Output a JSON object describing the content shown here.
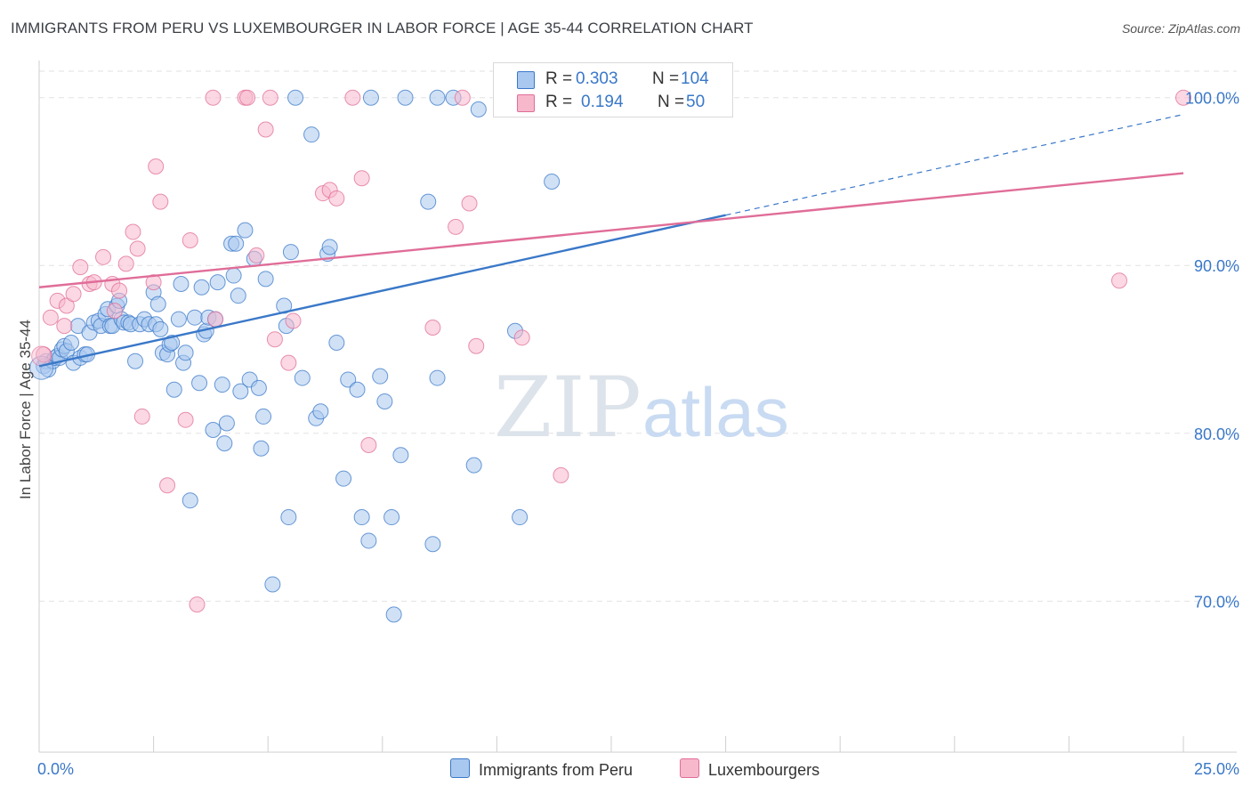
{
  "title": "IMMIGRANTS FROM PERU VS LUXEMBOURGER IN LABOR FORCE | AGE 35-44 CORRELATION CHART",
  "source": "Source: ZipAtlas.com",
  "watermark": {
    "zip": "ZIP",
    "atlas": "atlas"
  },
  "colors": {
    "blue": "#3a78c8",
    "blue_fill": "#a9c8ef",
    "pink": "#e06d98",
    "pink_fill": "#f7b8cc",
    "grid": "#e2e2e2",
    "axis_text": "#3a78c8"
  },
  "legend": {
    "r_label": "R =",
    "n_label": "N =",
    "rows": [
      {
        "r": "0.303",
        "n": "104"
      },
      {
        "r": "0.194",
        "n": "50"
      }
    ]
  },
  "bottom_legend": [
    "Immigrants from Peru",
    "Luxembourgers"
  ],
  "chart_data": {
    "type": "scatter",
    "title": "IMMIGRANTS FROM PERU VS LUXEMBOURGER IN LABOR FORCE | AGE 35-44 CORRELATION CHART",
    "xlabel": "",
    "ylabel": "In Labor Force | Age 35-44",
    "xlim": [
      0,
      25
    ],
    "ylim": [
      61,
      102
    ],
    "x_tick_labels": [
      "0.0%",
      "25.0%"
    ],
    "y_tick_labels": [
      "70.0%",
      "80.0%",
      "90.0%",
      "100.0%"
    ],
    "y_ticks": [
      70,
      80,
      90,
      100
    ],
    "grid": true,
    "series": [
      {
        "name": "Immigrants from Peru",
        "color": "#3a78c8",
        "trend": {
          "x0": 0,
          "y0": 84.0,
          "x1": 25,
          "y1": 99.0,
          "solid_until_x": 15
        },
        "points": [
          [
            0.1,
            84.0
          ],
          [
            0.15,
            84.3
          ],
          [
            0.2,
            83.8
          ],
          [
            0.3,
            84.3
          ],
          [
            0.35,
            84.5
          ],
          [
            0.4,
            84.6
          ],
          [
            0.45,
            84.5
          ],
          [
            0.5,
            85.0
          ],
          [
            0.55,
            85.2
          ],
          [
            0.6,
            84.9
          ],
          [
            0.7,
            85.4
          ],
          [
            0.75,
            84.2
          ],
          [
            0.85,
            86.4
          ],
          [
            0.9,
            84.5
          ],
          [
            1.0,
            84.7
          ],
          [
            1.05,
            84.7
          ],
          [
            1.1,
            86.0
          ],
          [
            1.2,
            86.6
          ],
          [
            1.3,
            86.7
          ],
          [
            1.35,
            86.4
          ],
          [
            1.45,
            87.1
          ],
          [
            1.5,
            87.4
          ],
          [
            1.55,
            86.4
          ],
          [
            1.6,
            86.4
          ],
          [
            1.7,
            87.6
          ],
          [
            1.75,
            87.9
          ],
          [
            1.8,
            86.8
          ],
          [
            1.85,
            86.6
          ],
          [
            1.95,
            86.6
          ],
          [
            2.0,
            86.5
          ],
          [
            2.1,
            84.3
          ],
          [
            2.2,
            86.5
          ],
          [
            2.3,
            86.8
          ],
          [
            2.4,
            86.5
          ],
          [
            2.5,
            88.4
          ],
          [
            2.55,
            86.5
          ],
          [
            2.6,
            87.7
          ],
          [
            2.65,
            86.2
          ],
          [
            2.7,
            84.8
          ],
          [
            2.8,
            84.7
          ],
          [
            2.85,
            85.3
          ],
          [
            2.9,
            85.4
          ],
          [
            2.95,
            82.6
          ],
          [
            3.05,
            86.8
          ],
          [
            3.1,
            88.9
          ],
          [
            3.15,
            84.2
          ],
          [
            3.2,
            84.8
          ],
          [
            3.3,
            76.0
          ],
          [
            3.4,
            86.9
          ],
          [
            3.5,
            83.0
          ],
          [
            3.55,
            88.7
          ],
          [
            3.6,
            85.9
          ],
          [
            3.65,
            86.1
          ],
          [
            3.7,
            86.9
          ],
          [
            3.8,
            80.2
          ],
          [
            3.85,
            86.8
          ],
          [
            3.9,
            89.0
          ],
          [
            4.0,
            82.9
          ],
          [
            4.05,
            79.4
          ],
          [
            4.1,
            80.6
          ],
          [
            4.2,
            91.3
          ],
          [
            4.25,
            89.4
          ],
          [
            4.3,
            91.3
          ],
          [
            4.35,
            88.2
          ],
          [
            4.4,
            82.5
          ],
          [
            4.5,
            92.1
          ],
          [
            4.6,
            83.2
          ],
          [
            4.7,
            90.4
          ],
          [
            4.8,
            82.7
          ],
          [
            4.85,
            79.1
          ],
          [
            4.9,
            81.0
          ],
          [
            4.95,
            89.2
          ],
          [
            5.1,
            71.0
          ],
          [
            5.35,
            87.6
          ],
          [
            5.4,
            86.4
          ],
          [
            5.45,
            75.0
          ],
          [
            5.5,
            90.8
          ],
          [
            5.6,
            100.0
          ],
          [
            5.75,
            83.3
          ],
          [
            5.95,
            97.8
          ],
          [
            6.05,
            80.9
          ],
          [
            6.15,
            81.3
          ],
          [
            6.3,
            90.7
          ],
          [
            6.35,
            91.1
          ],
          [
            6.5,
            85.4
          ],
          [
            6.65,
            77.3
          ],
          [
            6.75,
            83.2
          ],
          [
            6.95,
            82.6
          ],
          [
            7.05,
            75.0
          ],
          [
            7.2,
            73.6
          ],
          [
            7.45,
            83.4
          ],
          [
            7.55,
            81.9
          ],
          [
            7.7,
            75.0
          ],
          [
            7.75,
            69.2
          ],
          [
            7.9,
            78.7
          ],
          [
            8.5,
            93.8
          ],
          [
            8.6,
            73.4
          ],
          [
            8.7,
            83.3
          ],
          [
            9.05,
            100.0
          ],
          [
            9.5,
            78.1
          ],
          [
            9.6,
            99.3
          ],
          [
            10.4,
            86.1
          ],
          [
            10.5,
            75.0
          ],
          [
            11.2,
            95.0
          ],
          [
            7.25,
            100.0
          ],
          [
            8.0,
            100.0
          ],
          [
            8.7,
            100.0
          ],
          [
            13.3,
            100.0
          ]
        ]
      },
      {
        "name": "Luxembourgers",
        "color": "#e06d98",
        "trend": {
          "x0": 0,
          "y0": 88.7,
          "x1": 25,
          "y1": 95.5
        },
        "points": [
          [
            0.1,
            84.7
          ],
          [
            0.25,
            86.9
          ],
          [
            0.4,
            87.9
          ],
          [
            0.55,
            86.4
          ],
          [
            0.6,
            87.6
          ],
          [
            0.75,
            88.3
          ],
          [
            0.9,
            89.9
          ],
          [
            1.1,
            88.9
          ],
          [
            1.2,
            89.0
          ],
          [
            1.4,
            90.5
          ],
          [
            1.6,
            88.9
          ],
          [
            1.65,
            87.3
          ],
          [
            1.75,
            88.5
          ],
          [
            1.9,
            90.1
          ],
          [
            2.05,
            92.0
          ],
          [
            2.15,
            91.0
          ],
          [
            2.25,
            81.0
          ],
          [
            2.5,
            89.0
          ],
          [
            2.55,
            95.9
          ],
          [
            2.65,
            93.8
          ],
          [
            2.8,
            76.9
          ],
          [
            3.2,
            80.8
          ],
          [
            3.3,
            91.5
          ],
          [
            3.45,
            69.8
          ],
          [
            3.8,
            100.0
          ],
          [
            3.85,
            86.8
          ],
          [
            4.5,
            100.0
          ],
          [
            4.55,
            100.0
          ],
          [
            4.75,
            90.6
          ],
          [
            4.95,
            98.1
          ],
          [
            5.05,
            100.0
          ],
          [
            5.15,
            85.6
          ],
          [
            5.45,
            84.2
          ],
          [
            5.55,
            86.7
          ],
          [
            6.2,
            94.3
          ],
          [
            6.35,
            94.5
          ],
          [
            6.5,
            94.0
          ],
          [
            6.85,
            100.0
          ],
          [
            7.05,
            95.2
          ],
          [
            7.2,
            79.3
          ],
          [
            8.6,
            86.3
          ],
          [
            9.1,
            92.3
          ],
          [
            9.25,
            100.0
          ],
          [
            9.4,
            93.7
          ],
          [
            9.55,
            85.2
          ],
          [
            10.45,
            100.0
          ],
          [
            10.55,
            85.7
          ],
          [
            11.4,
            77.5
          ],
          [
            23.6,
            89.1
          ],
          [
            25.0,
            100.0
          ]
        ]
      }
    ]
  }
}
